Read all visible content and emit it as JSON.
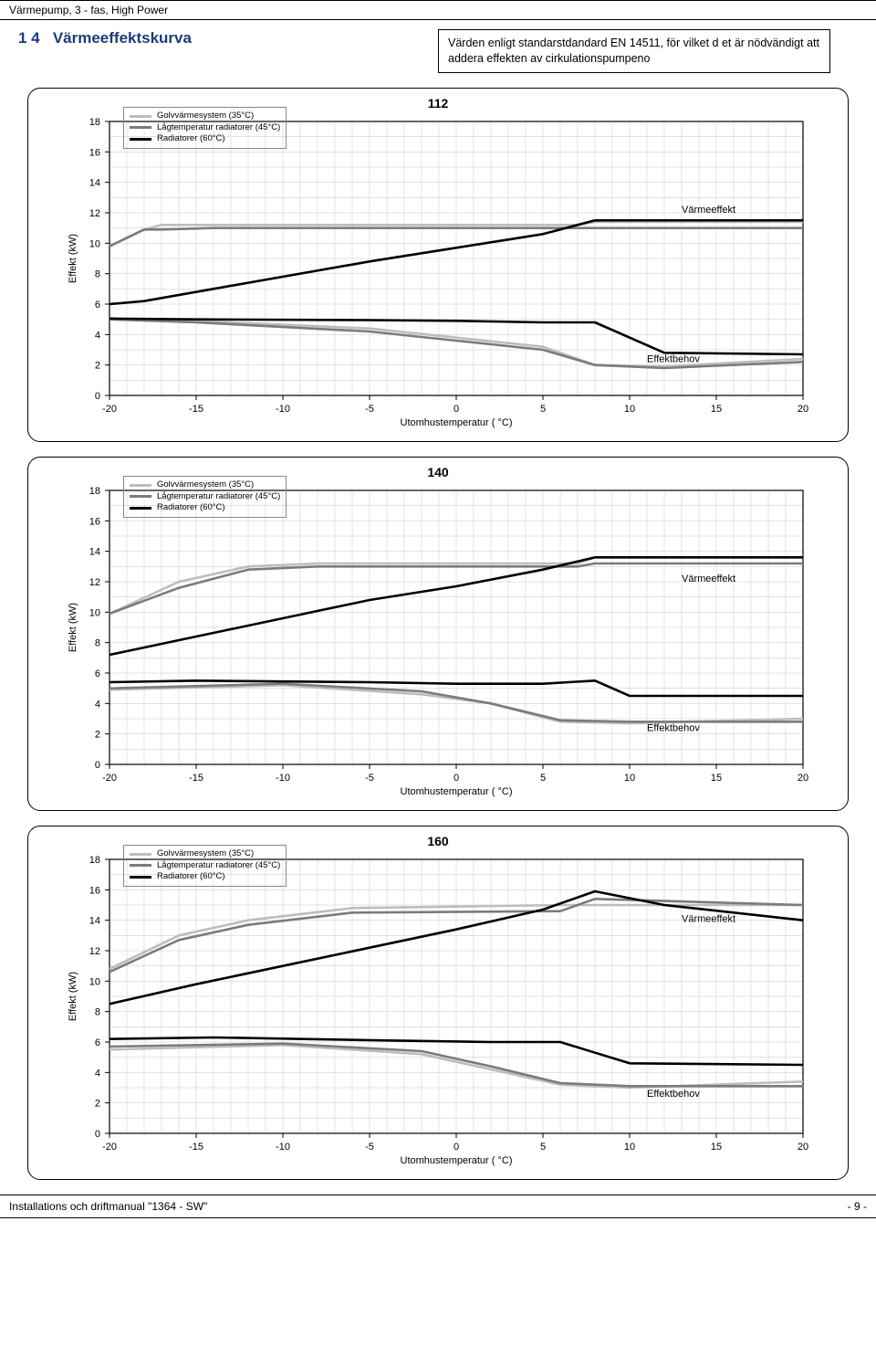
{
  "header_text": "Värmepump, 3 - fas, High Power",
  "section_number": "1 4",
  "section_title": "Värmeeffektskurva",
  "note_text": "Värden enligt standarstdandard EN 14511, för vilket d et är nödvändigt att addera effekten av cirkulationspumpeno",
  "footer_left": "Installations och driftmanual \"1364 - SW\"",
  "footer_right": "- 9 -",
  "legend": {
    "items": [
      {
        "label": "Golvvärmesystem     (35°C)",
        "color": "#bdbdbd"
      },
      {
        "label": "Lågtemperatur radiatorer (45°C)",
        "color": "#7b7b7b"
      },
      {
        "label": "Radiatorer          (60°C)",
        "color": "#000000"
      }
    ]
  },
  "annotations": {
    "heat_output": "Värmeeffekt",
    "power_demand": "Effektbehov"
  },
  "axes": {
    "x_label": "Utomhustemperatur  ( °C)",
    "y_label": "Effekt  (kW)",
    "x_ticks": [
      -20,
      -15,
      -10,
      -5,
      0,
      5,
      10,
      15,
      20
    ],
    "y_ticks": [
      0,
      2,
      4,
      6,
      8,
      10,
      12,
      14,
      16,
      18
    ],
    "xlim": [
      -20,
      20
    ],
    "ylim": [
      0,
      18
    ]
  },
  "chart_style": {
    "type": "line",
    "colors": {
      "grid": "#c7c7c7",
      "axis": "#000000",
      "bg": "#ffffff"
    },
    "line_width": 2.6,
    "series_colors": {
      "light": "#bdbdbd",
      "mid": "#7b7b7b",
      "dark": "#000000"
    }
  },
  "charts": [
    {
      "title": "112",
      "heat_anno_y": 12.0,
      "demand_anno_y": 2.2,
      "series_top": {
        "light": [
          [
            -20,
            9.8
          ],
          [
            -18,
            10.9
          ],
          [
            -17,
            11.2
          ],
          [
            -14,
            11.2
          ],
          [
            7,
            11.2
          ],
          [
            8,
            11.4
          ],
          [
            20,
            11.4
          ]
        ],
        "mid": [
          [
            -20,
            9.8
          ],
          [
            -18,
            10.9
          ],
          [
            -17,
            10.9
          ],
          [
            -14,
            11.0
          ],
          [
            7,
            11.0
          ],
          [
            8,
            11.0
          ],
          [
            20,
            11.0
          ]
        ],
        "dark": [
          [
            -20,
            6.0
          ],
          [
            -18,
            6.2
          ],
          [
            -14,
            7.0
          ],
          [
            -5,
            8.8
          ],
          [
            0,
            9.7
          ],
          [
            5,
            10.6
          ],
          [
            8,
            11.5
          ],
          [
            20,
            11.5
          ]
        ]
      },
      "series_bot": {
        "light": [
          [
            -20,
            5.0
          ],
          [
            -15,
            4.9
          ],
          [
            -5,
            4.4
          ],
          [
            0,
            3.8
          ],
          [
            5,
            3.2
          ],
          [
            8,
            2.0
          ],
          [
            12,
            1.9
          ],
          [
            20,
            2.4
          ]
        ],
        "mid": [
          [
            -20,
            5.0
          ],
          [
            -15,
            4.8
          ],
          [
            -5,
            4.2
          ],
          [
            0,
            3.6
          ],
          [
            5,
            3.0
          ],
          [
            8,
            2.0
          ],
          [
            12,
            1.8
          ],
          [
            20,
            2.2
          ]
        ],
        "dark": [
          [
            -20,
            5.05
          ],
          [
            -15,
            5.0
          ],
          [
            -5,
            4.95
          ],
          [
            0,
            4.9
          ],
          [
            5,
            4.8
          ],
          [
            8,
            4.8
          ],
          [
            12,
            2.8
          ],
          [
            20,
            2.7
          ]
        ]
      }
    },
    {
      "title": "140",
      "heat_anno_y": 12.0,
      "demand_anno_y": 2.2,
      "series_top": {
        "light": [
          [
            -20,
            9.9
          ],
          [
            -16,
            12.0
          ],
          [
            -12,
            13.0
          ],
          [
            -8,
            13.2
          ],
          [
            7,
            13.2
          ],
          [
            8,
            13.6
          ],
          [
            20,
            13.6
          ]
        ],
        "mid": [
          [
            -20,
            9.9
          ],
          [
            -16,
            11.6
          ],
          [
            -12,
            12.8
          ],
          [
            -8,
            13.0
          ],
          [
            7,
            13.0
          ],
          [
            8,
            13.2
          ],
          [
            20,
            13.2
          ]
        ],
        "dark": [
          [
            -20,
            7.2
          ],
          [
            -15,
            8.4
          ],
          [
            -10,
            9.6
          ],
          [
            -5,
            10.8
          ],
          [
            0,
            11.7
          ],
          [
            5,
            12.8
          ],
          [
            8,
            13.6
          ],
          [
            20,
            13.6
          ]
        ]
      },
      "series_bot": {
        "light": [
          [
            -20,
            4.9
          ],
          [
            -10,
            5.2
          ],
          [
            -2,
            4.6
          ],
          [
            2,
            4.0
          ],
          [
            6,
            2.8
          ],
          [
            10,
            2.7
          ],
          [
            20,
            3.0
          ]
        ],
        "mid": [
          [
            -20,
            5.0
          ],
          [
            -10,
            5.3
          ],
          [
            -2,
            4.8
          ],
          [
            2,
            4.0
          ],
          [
            6,
            2.9
          ],
          [
            10,
            2.8
          ],
          [
            20,
            2.8
          ]
        ],
        "dark": [
          [
            -20,
            5.4
          ],
          [
            -15,
            5.5
          ],
          [
            -5,
            5.4
          ],
          [
            0,
            5.3
          ],
          [
            5,
            5.3
          ],
          [
            8,
            5.5
          ],
          [
            10,
            4.5
          ],
          [
            20,
            4.5
          ]
        ]
      }
    },
    {
      "title": "160",
      "heat_anno_y": 13.9,
      "demand_anno_y": 2.4,
      "series_top": {
        "light": [
          [
            -20,
            10.8
          ],
          [
            -16,
            13.0
          ],
          [
            -12,
            14.0
          ],
          [
            -6,
            14.8
          ],
          [
            6,
            15.0
          ],
          [
            8,
            15.0
          ],
          [
            20,
            15.0
          ]
        ],
        "mid": [
          [
            -20,
            10.6
          ],
          [
            -16,
            12.7
          ],
          [
            -12,
            13.7
          ],
          [
            -6,
            14.5
          ],
          [
            6,
            14.6
          ],
          [
            8,
            15.4
          ],
          [
            20,
            15.0
          ]
        ],
        "dark": [
          [
            -20,
            8.5
          ],
          [
            -15,
            9.8
          ],
          [
            -10,
            11.0
          ],
          [
            -5,
            12.2
          ],
          [
            0,
            13.4
          ],
          [
            5,
            14.7
          ],
          [
            8,
            15.9
          ],
          [
            12,
            15.0
          ],
          [
            20,
            14.0
          ]
        ]
      },
      "series_bot": {
        "light": [
          [
            -20,
            5.5
          ],
          [
            -10,
            5.8
          ],
          [
            -2,
            5.2
          ],
          [
            2,
            4.2
          ],
          [
            6,
            3.2
          ],
          [
            10,
            3.0
          ],
          [
            20,
            3.4
          ]
        ],
        "mid": [
          [
            -20,
            5.7
          ],
          [
            -10,
            5.9
          ],
          [
            -2,
            5.4
          ],
          [
            2,
            4.4
          ],
          [
            6,
            3.3
          ],
          [
            10,
            3.1
          ],
          [
            20,
            3.1
          ]
        ],
        "dark": [
          [
            -20,
            6.2
          ],
          [
            -14,
            6.3
          ],
          [
            -4,
            6.1
          ],
          [
            2,
            6.0
          ],
          [
            6,
            6.0
          ],
          [
            10,
            4.6
          ],
          [
            20,
            4.5
          ]
        ]
      }
    }
  ]
}
